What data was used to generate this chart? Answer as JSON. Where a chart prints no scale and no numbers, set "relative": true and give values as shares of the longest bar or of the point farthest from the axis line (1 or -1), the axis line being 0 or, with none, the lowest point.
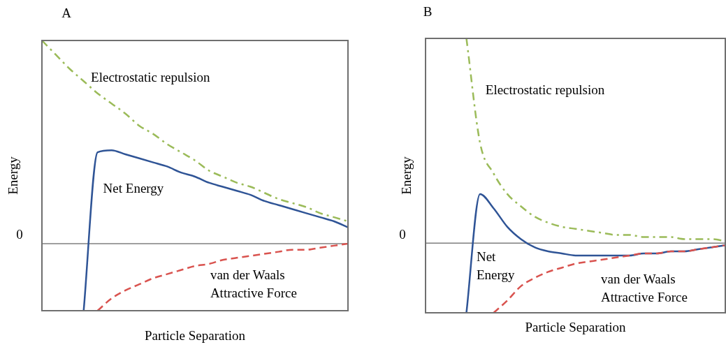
{
  "chart_data": [
    {
      "type": "line",
      "title": "A",
      "xlabel": "Particle Separation",
      "ylabel": "Energy",
      "relative": true,
      "legend": false,
      "grid": false,
      "marker": "none",
      "categories": [
        null,
        null,
        null,
        null,
        null,
        null,
        null,
        null,
        null,
        null,
        null,
        null,
        null,
        null,
        null,
        null,
        null,
        null,
        null,
        null,
        null,
        null,
        null
      ],
      "ref_lines": [
        {
          "axis": "y",
          "value": 0,
          "label": "0",
          "color": "#7f7f7f"
        }
      ],
      "series": [
        {
          "name": "Electrostatic repulsion",
          "color": "#9bbb59",
          "line_style": "dashdot",
          "values": [
            1.0,
            0.93,
            0.86,
            0.8,
            0.74,
            0.69,
            0.64,
            0.58,
            0.54,
            0.49,
            0.45,
            0.41,
            0.36,
            0.33,
            0.3,
            0.28,
            0.25,
            0.22,
            0.2,
            0.18,
            0.15,
            0.13,
            0.11
          ]
        },
        {
          "name": "Net Energy",
          "color": "#2f5496",
          "line_style": "solid",
          "values": [
            null,
            null,
            null,
            -0.33,
            0.45,
            0.46,
            0.44,
            0.42,
            0.4,
            0.38,
            0.35,
            0.33,
            0.3,
            0.28,
            0.26,
            0.24,
            0.21,
            0.19,
            0.17,
            0.15,
            0.13,
            0.11,
            0.08
          ]
        },
        {
          "name": "van der Waals Attractive Force",
          "color": "#d9534f",
          "line_style": "dashed",
          "values": [
            null,
            null,
            null,
            null,
            -0.33,
            -0.27,
            -0.23,
            -0.2,
            -0.17,
            -0.15,
            -0.13,
            -0.11,
            -0.1,
            -0.08,
            -0.07,
            -0.06,
            -0.05,
            -0.04,
            -0.03,
            -0.03,
            -0.02,
            -0.01,
            0.0
          ]
        }
      ]
    },
    {
      "type": "line",
      "title": "B",
      "xlabel": "Particle Separation",
      "ylabel": "Energy",
      "relative": true,
      "legend": false,
      "grid": false,
      "marker": "none",
      "categories": [
        null,
        null,
        null,
        null,
        null,
        null,
        null,
        null,
        null,
        null,
        null,
        null,
        null,
        null,
        null,
        null,
        null,
        null,
        null,
        null,
        null,
        null,
        null
      ],
      "ref_lines": [
        {
          "axis": "y",
          "value": 0,
          "label": "0",
          "color": "#7f7f7f"
        }
      ],
      "series": [
        {
          "name": "Electrostatic repulsion",
          "color": "#9bbb59",
          "line_style": "dashdot",
          "values": [
            null,
            null,
            null,
            1.0,
            0.49,
            0.34,
            0.24,
            0.18,
            0.13,
            0.1,
            0.08,
            0.07,
            0.06,
            0.05,
            0.04,
            0.04,
            0.03,
            0.03,
            0.03,
            0.02,
            0.02,
            0.02,
            0.01
          ]
        },
        {
          "name": "Net Energy",
          "color": "#2f5496",
          "line_style": "solid",
          "values": [
            null,
            null,
            null,
            -0.34,
            0.24,
            0.17,
            0.08,
            0.02,
            -0.02,
            -0.04,
            -0.05,
            -0.06,
            -0.06,
            -0.06,
            -0.06,
            -0.06,
            -0.05,
            -0.05,
            -0.04,
            -0.04,
            -0.03,
            -0.02,
            -0.01
          ]
        },
        {
          "name": "van der Waals Attractive Force",
          "color": "#d9534f",
          "line_style": "dashed",
          "values": [
            null,
            null,
            null,
            null,
            null,
            -0.34,
            -0.28,
            -0.21,
            -0.17,
            -0.14,
            -0.12,
            -0.1,
            -0.09,
            -0.08,
            -0.07,
            -0.06,
            -0.05,
            -0.05,
            -0.04,
            -0.04,
            -0.03,
            -0.02,
            -0.01
          ]
        }
      ]
    }
  ]
}
